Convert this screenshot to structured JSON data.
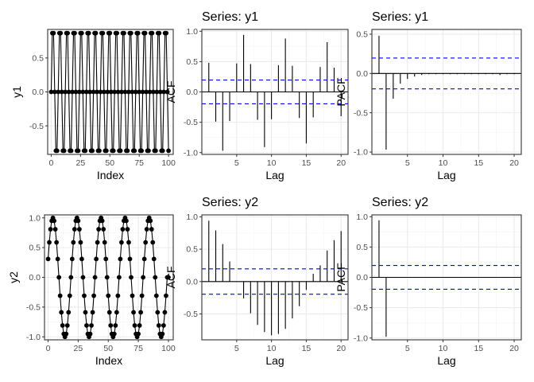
{
  "figure": {
    "background": "#ffffff",
    "panel_border": "#333333",
    "grid_major": "#ebebeb",
    "grid_minor": "#f5f5f5",
    "ci_color": "#0000ff"
  },
  "chart_data": [
    {
      "id": "ts1",
      "type": "line",
      "title": "",
      "xlabel": "Index",
      "ylabel": "y1",
      "xlim": [
        -3,
        104
      ],
      "ylim": [
        -0.92,
        0.92
      ],
      "xticks": [
        0,
        25,
        50,
        75,
        100
      ],
      "xtick_labels": [
        "0",
        "25",
        "50",
        "75",
        "100"
      ],
      "yticks": [
        -0.5,
        0.0,
        0.5
      ],
      "ytick_labels": [
        "-0.5",
        "0.0",
        "0.5"
      ],
      "x": [
        0,
        1,
        2,
        3,
        4,
        5,
        6,
        7,
        8,
        9,
        10,
        11,
        12,
        13,
        14,
        15,
        16,
        17,
        18,
        19,
        20,
        21,
        22,
        23,
        24,
        25,
        26,
        27,
        28,
        29,
        30,
        31,
        32,
        33,
        34,
        35,
        36,
        37,
        38,
        39,
        40,
        41,
        42,
        43,
        44,
        45,
        46,
        47,
        48,
        49,
        50,
        51,
        52,
        53,
        54,
        55,
        56,
        57,
        58,
        59,
        60,
        61,
        62,
        63,
        64,
        65,
        66,
        67,
        68,
        69,
        70,
        71,
        72,
        73,
        74,
        75,
        76,
        77,
        78,
        79,
        80,
        81,
        82,
        83,
        84,
        85,
        86,
        87,
        88,
        89,
        90,
        91,
        92,
        93,
        94,
        95,
        96,
        97,
        98,
        99,
        100
      ],
      "values": [
        0,
        0.866,
        0.866,
        0,
        -0.866,
        -0.866,
        0,
        0.866,
        0.866,
        0,
        -0.866,
        -0.866,
        0,
        0.866,
        0.866,
        0,
        -0.866,
        -0.866,
        0,
        0.866,
        0.866,
        0,
        -0.866,
        -0.866,
        0,
        0.866,
        0.866,
        0,
        -0.866,
        -0.866,
        0,
        0.866,
        0.866,
        0,
        -0.866,
        -0.866,
        0,
        0.866,
        0.866,
        0,
        -0.866,
        -0.866,
        0,
        0.866,
        0.866,
        0,
        -0.866,
        -0.866,
        0,
        0.866,
        0.866,
        0,
        -0.866,
        -0.866,
        0,
        0.866,
        0.866,
        0,
        -0.866,
        -0.866,
        0,
        0.866,
        0.866,
        0,
        -0.866,
        -0.866,
        0,
        0.866,
        0.866,
        0,
        -0.866,
        -0.866,
        0,
        0.866,
        0.866,
        0,
        -0.866,
        -0.866,
        0,
        0.866,
        0.866,
        0,
        -0.866,
        -0.866,
        0,
        0.866,
        0.866,
        0,
        -0.866,
        -0.866,
        0,
        0.866,
        0.866,
        0,
        -0.866,
        -0.866,
        0,
        0.866,
        0.866,
        0,
        -0.866
      ]
    },
    {
      "id": "acf1",
      "type": "bar",
      "title": "Series: y1",
      "xlabel": "Lag",
      "ylabel": "ACF",
      "xlim": [
        0,
        21
      ],
      "ylim": [
        -1.03,
        1.03
      ],
      "xticks": [
        5,
        10,
        15,
        20
      ],
      "xtick_labels": [
        "5",
        "10",
        "15",
        "20"
      ],
      "yticks": [
        -1.0,
        -0.5,
        0.0,
        0.5,
        1.0
      ],
      "ytick_labels": [
        "-1.0",
        "-0.5",
        "0.0",
        "0.5",
        "1.0"
      ],
      "ci": 0.196,
      "x": [
        1,
        2,
        3,
        4,
        5,
        6,
        7,
        8,
        9,
        10,
        11,
        12,
        13,
        14,
        15,
        16,
        17,
        18,
        19,
        20
      ],
      "values": [
        0.48,
        -0.49,
        -0.97,
        -0.48,
        0.47,
        0.94,
        0.46,
        -0.46,
        -0.91,
        -0.45,
        0.44,
        0.88,
        0.43,
        -0.43,
        -0.85,
        -0.42,
        0.41,
        0.82,
        0.4,
        -0.4
      ]
    },
    {
      "id": "pacf1",
      "type": "bar",
      "title": "Series: y1",
      "xlabel": "Lag",
      "ylabel": "PACF",
      "xlim": [
        0,
        21
      ],
      "ylim": [
        -1.03,
        0.56
      ],
      "xticks": [
        5,
        10,
        15,
        20
      ],
      "xtick_labels": [
        "5",
        "10",
        "15",
        "20"
      ],
      "yticks": [
        -1.0,
        -0.5,
        0.0,
        0.5
      ],
      "ytick_labels": [
        "-1.0",
        "-0.5",
        "0.0",
        "0.5"
      ],
      "ci": 0.196,
      "x": [
        1,
        2,
        3,
        4,
        5,
        6,
        7,
        8,
        9,
        10,
        11,
        12,
        13,
        14,
        15,
        16,
        17,
        18,
        19,
        20
      ],
      "values": [
        0.48,
        -0.97,
        -0.32,
        -0.13,
        -0.07,
        -0.04,
        -0.02,
        -0.01,
        -0.01,
        -0.01,
        -0.01,
        -0.01,
        -0.01,
        -0.01,
        -0.01,
        -0.01,
        -0.01,
        -0.02,
        -0.01,
        -0.01
      ]
    },
    {
      "id": "ts2",
      "type": "line",
      "title": "",
      "xlabel": "Index",
      "ylabel": "y2",
      "xlim": [
        -3,
        104
      ],
      "ylim": [
        -1.05,
        1.05
      ],
      "xticks": [
        0,
        25,
        50,
        75,
        100
      ],
      "xtick_labels": [
        "0",
        "25",
        "50",
        "75",
        "100"
      ],
      "yticks": [
        -1.0,
        -0.5,
        0.0,
        0.5,
        1.0
      ],
      "ytick_labels": [
        "-1.0",
        "-0.5",
        "0.0",
        "0.5",
        "1.0"
      ],
      "x": [
        0,
        1,
        2,
        3,
        4,
        5,
        6,
        7,
        8,
        9,
        10,
        11,
        12,
        13,
        14,
        15,
        16,
        17,
        18,
        19,
        20,
        21,
        22,
        23,
        24,
        25,
        26,
        27,
        28,
        29,
        30,
        31,
        32,
        33,
        34,
        35,
        36,
        37,
        38,
        39,
        40,
        41,
        42,
        43,
        44,
        45,
        46,
        47,
        48,
        49,
        50,
        51,
        52,
        53,
        54,
        55,
        56,
        57,
        58,
        59,
        60,
        61,
        62,
        63,
        64,
        65,
        66,
        67,
        68,
        69,
        70,
        71,
        72,
        73,
        74,
        75,
        76,
        77,
        78,
        79,
        80,
        81,
        82,
        83,
        84,
        85,
        86,
        87,
        88,
        89,
        90,
        91,
        92,
        93,
        94,
        95,
        96,
        97,
        98,
        99,
        100
      ],
      "values": [
        0.309,
        0.588,
        0.809,
        0.951,
        1.0,
        0.951,
        0.809,
        0.588,
        0.309,
        0,
        -0.309,
        -0.588,
        -0.809,
        -0.951,
        -1.0,
        -0.951,
        -0.809,
        -0.588,
        -0.309,
        0,
        0.309,
        0.588,
        0.809,
        0.951,
        1.0,
        0.951,
        0.809,
        0.588,
        0.309,
        0,
        -0.309,
        -0.588,
        -0.809,
        -0.951,
        -1.0,
        -0.951,
        -0.809,
        -0.588,
        -0.309,
        0,
        0.309,
        0.588,
        0.809,
        0.951,
        1.0,
        0.951,
        0.809,
        0.588,
        0.309,
        0,
        -0.309,
        -0.588,
        -0.809,
        -0.951,
        -1.0,
        -0.951,
        -0.809,
        -0.588,
        -0.309,
        0,
        0.309,
        0.588,
        0.809,
        0.951,
        1.0,
        0.951,
        0.809,
        0.588,
        0.309,
        0,
        -0.309,
        -0.588,
        -0.809,
        -0.951,
        -1.0,
        -0.951,
        -0.809,
        -0.588,
        -0.309,
        0,
        0.309,
        0.588,
        0.809,
        0.951,
        1.0,
        0.951,
        0.809,
        0.588,
        0.309,
        0,
        -0.309,
        -0.588,
        -0.809,
        -0.951,
        -1.0,
        -0.951,
        -0.809,
        -0.588,
        -0.309,
        0,
        0
      ]
    },
    {
      "id": "acf2",
      "type": "bar",
      "title": "Series: y2",
      "xlabel": "Lag",
      "ylabel": "ACF",
      "xlim": [
        0,
        21
      ],
      "ylim": [
        -0.9,
        1.03
      ],
      "xticks": [
        5,
        10,
        15,
        20
      ],
      "xtick_labels": [
        "5",
        "10",
        "15",
        "20"
      ],
      "yticks": [
        -0.5,
        0.0,
        0.5,
        1.0
      ],
      "ytick_labels": [
        "-0.5",
        "0.0",
        "0.5",
        "1.0"
      ],
      "ci": 0.196,
      "x": [
        1,
        2,
        3,
        4,
        5,
        6,
        7,
        8,
        9,
        10,
        11,
        12,
        13,
        14,
        15,
        16,
        17,
        18,
        19,
        20
      ],
      "values": [
        0.94,
        0.79,
        0.58,
        0.31,
        0.0,
        -0.26,
        -0.49,
        -0.67,
        -0.78,
        -0.83,
        -0.81,
        -0.73,
        -0.57,
        -0.38,
        -0.13,
        0.12,
        0.25,
        0.48,
        0.64,
        0.78
      ]
    },
    {
      "id": "pacf2",
      "type": "bar",
      "title": "Series: y2",
      "xlabel": "Lag",
      "ylabel": "PACF",
      "xlim": [
        0,
        21
      ],
      "ylim": [
        -1.03,
        1.03
      ],
      "xticks": [
        5,
        10,
        15,
        20
      ],
      "xtick_labels": [
        "5",
        "10",
        "15",
        "20"
      ],
      "yticks": [
        -1.0,
        -0.5,
        0.0,
        0.5,
        1.0
      ],
      "ytick_labels": [
        "-1.0",
        "-0.5",
        "0.0",
        "0.5",
        "1.0"
      ],
      "ci": 0.196,
      "x": [
        1,
        2,
        3,
        4,
        5,
        6,
        7,
        8,
        9,
        10,
        11,
        12,
        13,
        14,
        15,
        16,
        17,
        18,
        19,
        20
      ],
      "values": [
        0.94,
        -0.98,
        0.0,
        0.0,
        0.0,
        0.0,
        0.0,
        0.0,
        0.0,
        0.0,
        0.0,
        0.0,
        0.0,
        0.0,
        0.0,
        0.0,
        0.0,
        0.0,
        0.0,
        0.0
      ]
    }
  ]
}
